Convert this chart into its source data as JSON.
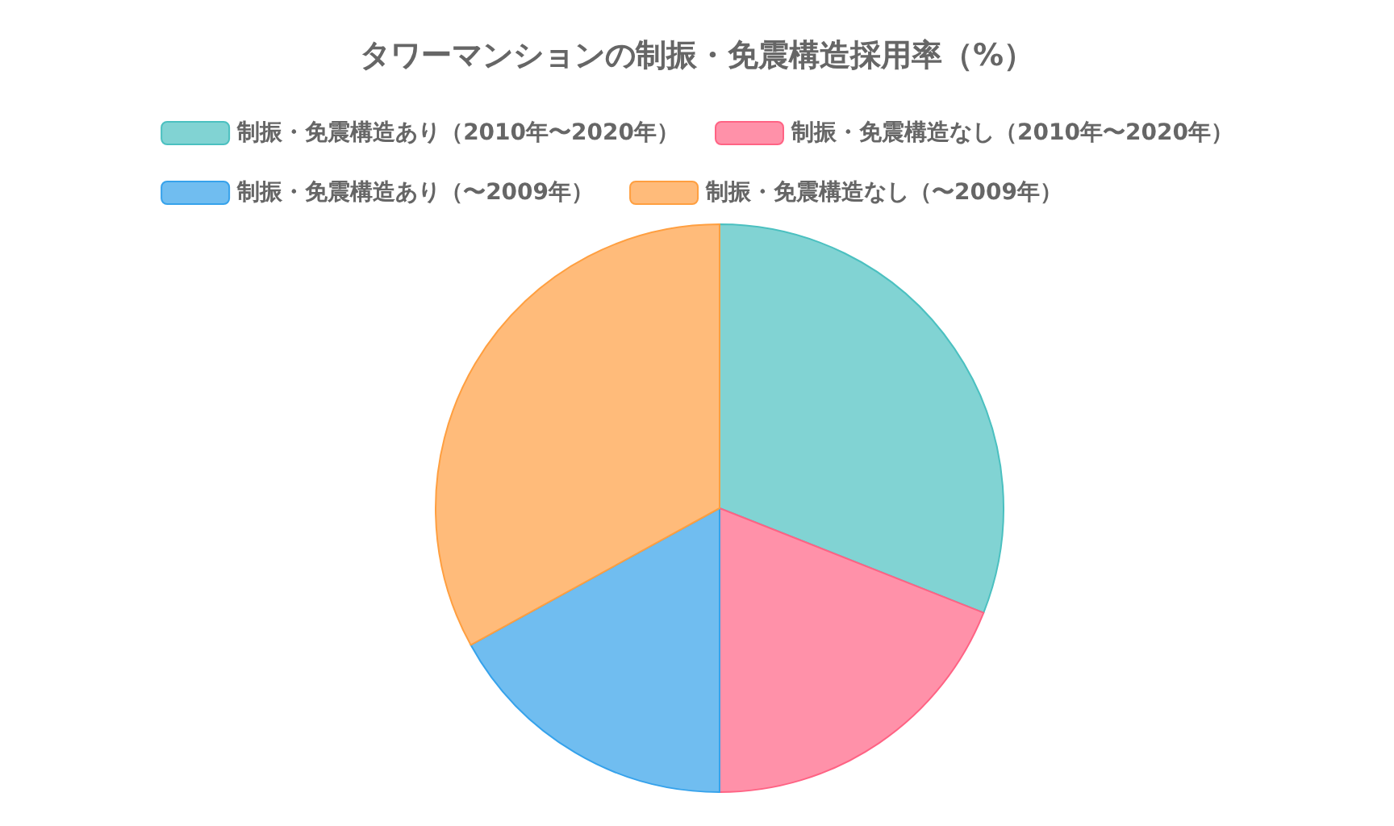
{
  "chart_data": {
    "type": "pie",
    "title": "タワーマンションの制振・免震構造採用率（%）",
    "categories": [
      "制振・免震構造あり（2010年〜2020年）",
      "制振・免震構造なし（2010年〜2020年）",
      "制振・免震構造あり（〜2009年）",
      "制振・免震構造なし（〜2009年）"
    ],
    "values": [
      31,
      19,
      17,
      33
    ],
    "colors": [
      "#81d3d3",
      "#ff91a9",
      "#70bdf0",
      "#ffbb7a"
    ],
    "legend": "top"
  }
}
